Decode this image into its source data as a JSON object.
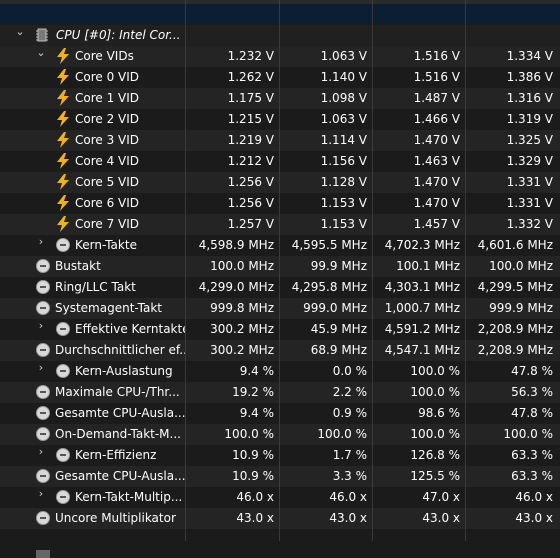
{
  "group": {
    "label": "CPU [#0]: Intel Cor...",
    "icon": "cpu-chip-icon"
  },
  "rows": [
    {
      "type": "bolt",
      "indent": 2,
      "chev": "⌄",
      "label": "Core VIDs",
      "values": [
        "1.232 V",
        "1.063 V",
        "1.516 V",
        "1.334 V"
      ]
    },
    {
      "type": "bolt",
      "indent": 3,
      "chev": "",
      "label": "Core 0 VID",
      "values": [
        "1.262 V",
        "1.140 V",
        "1.516 V",
        "1.386 V"
      ]
    },
    {
      "type": "bolt",
      "indent": 3,
      "chev": "",
      "label": "Core 1 VID",
      "values": [
        "1.175 V",
        "1.098 V",
        "1.487 V",
        "1.316 V"
      ]
    },
    {
      "type": "bolt",
      "indent": 3,
      "chev": "",
      "label": "Core 2 VID",
      "values": [
        "1.215 V",
        "1.063 V",
        "1.466 V",
        "1.319 V"
      ]
    },
    {
      "type": "bolt",
      "indent": 3,
      "chev": "",
      "label": "Core 3 VID",
      "values": [
        "1.219 V",
        "1.114 V",
        "1.470 V",
        "1.325 V"
      ]
    },
    {
      "type": "bolt",
      "indent": 3,
      "chev": "",
      "label": "Core 4 VID",
      "values": [
        "1.212 V",
        "1.156 V",
        "1.463 V",
        "1.329 V"
      ]
    },
    {
      "type": "bolt",
      "indent": 3,
      "chev": "",
      "label": "Core 5 VID",
      "values": [
        "1.256 V",
        "1.128 V",
        "1.470 V",
        "1.331 V"
      ]
    },
    {
      "type": "bolt",
      "indent": 3,
      "chev": "",
      "label": "Core 6 VID",
      "values": [
        "1.256 V",
        "1.153 V",
        "1.470 V",
        "1.331 V"
      ]
    },
    {
      "type": "bolt",
      "indent": 3,
      "chev": "",
      "label": "Core 7 VID",
      "values": [
        "1.257 V",
        "1.153 V",
        "1.457 V",
        "1.332 V"
      ]
    },
    {
      "type": "clock",
      "indent": 2,
      "chev": "›",
      "label": "Kern-Takte",
      "values": [
        "4,598.9 MHz",
        "4,595.5 MHz",
        "4,702.3 MHz",
        "4,601.6 MHz"
      ]
    },
    {
      "type": "clock",
      "indent": 1,
      "chev": "",
      "label": "Bustakt",
      "values": [
        "100.0 MHz",
        "99.9 MHz",
        "100.1 MHz",
        "100.0 MHz"
      ]
    },
    {
      "type": "clock",
      "indent": 1,
      "chev": "",
      "label": "Ring/LLC Takt",
      "values": [
        "4,299.0 MHz",
        "4,295.8 MHz",
        "4,303.1 MHz",
        "4,299.5 MHz"
      ]
    },
    {
      "type": "clock",
      "indent": 1,
      "chev": "",
      "label": "Systemagent-Takt",
      "values": [
        "999.8 MHz",
        "999.0 MHz",
        "1,000.7 MHz",
        "999.9 MHz"
      ]
    },
    {
      "type": "clock",
      "indent": 2,
      "chev": "›",
      "label": "Effektive Kerntakte",
      "values": [
        "300.2 MHz",
        "45.9 MHz",
        "4,591.2 MHz",
        "2,208.9 MHz"
      ]
    },
    {
      "type": "clock",
      "indent": 1,
      "chev": "",
      "label": "Durchschnittlicher ef...",
      "values": [
        "300.2 MHz",
        "68.9 MHz",
        "4,547.1 MHz",
        "2,208.9 MHz"
      ]
    },
    {
      "type": "clock",
      "indent": 2,
      "chev": "›",
      "label": "Kern-Auslastung",
      "values": [
        "9.4 %",
        "0.0 %",
        "100.0 %",
        "47.8 %"
      ]
    },
    {
      "type": "clock",
      "indent": 1,
      "chev": "",
      "label": "Maximale CPU-/Thr...",
      "values": [
        "19.2 %",
        "2.2 %",
        "100.0 %",
        "56.3 %"
      ]
    },
    {
      "type": "clock",
      "indent": 1,
      "chev": "",
      "label": "Gesamte CPU-Ausla...",
      "values": [
        "9.4 %",
        "0.9 %",
        "98.6 %",
        "47.8 %"
      ]
    },
    {
      "type": "clock",
      "indent": 1,
      "chev": "",
      "label": "On-Demand-Takt-M...",
      "values": [
        "100.0 %",
        "100.0 %",
        "100.0 %",
        "100.0 %"
      ]
    },
    {
      "type": "clock",
      "indent": 2,
      "chev": "›",
      "label": "Kern-Effizienz",
      "values": [
        "10.9 %",
        "1.7 %",
        "126.8 %",
        "63.3 %"
      ]
    },
    {
      "type": "clock",
      "indent": 1,
      "chev": "",
      "label": "Gesamte CPU-Ausla...",
      "values": [
        "10.9 %",
        "3.3 %",
        "125.5 %",
        "63.3 %"
      ]
    },
    {
      "type": "clock",
      "indent": 2,
      "chev": "›",
      "label": "Kern-Takt-Multip...",
      "values": [
        "46.0 x",
        "46.0 x",
        "47.0 x",
        "46.0 x"
      ]
    },
    {
      "type": "clock",
      "indent": 1,
      "chev": "",
      "label": "Uncore Multiplikator",
      "values": [
        "43.0 x",
        "43.0 x",
        "43.0 x",
        "43.0 x"
      ]
    }
  ],
  "colors": {
    "bolt": "#f2b01e",
    "accent_header": "#0b1e33"
  }
}
